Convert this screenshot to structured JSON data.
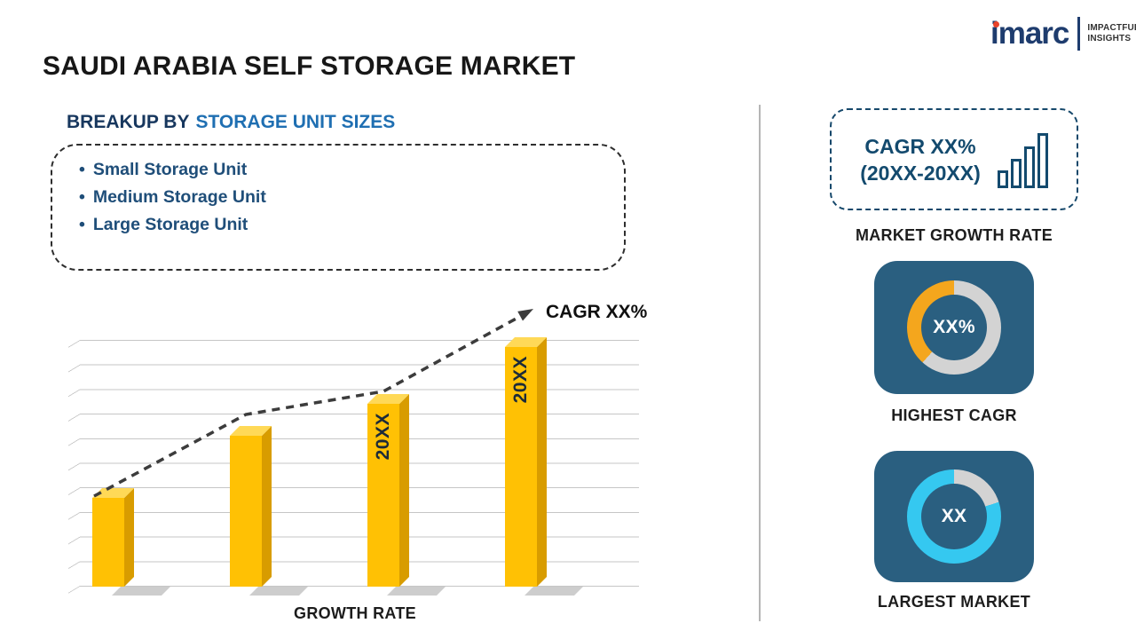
{
  "page": {
    "title": "SAUDI ARABIA SELF STORAGE MARKET"
  },
  "logo": {
    "brand": "imarc",
    "tagline_line1": "IMPACTFUL",
    "tagline_line2": "INSIGHTS"
  },
  "breakup": {
    "heading_prefix": "BREAKUP BY",
    "heading_highlight": "STORAGE UNIT SIZES",
    "items": [
      "Small Storage Unit",
      "Medium Storage Unit",
      "Large Storage Unit"
    ]
  },
  "chart_data": {
    "type": "bar",
    "bar_labels": [
      "",
      "",
      "20XX",
      "20XX"
    ],
    "values_pct": [
      36,
      61,
      74,
      97
    ],
    "ylim": [
      0,
      100
    ],
    "grid": true,
    "bar_color": "#FFC104",
    "xlabel": "GROWTH RATE",
    "trend_label": "CAGR XX%"
  },
  "sidebar": {
    "growth_box": {
      "line1": "CAGR XX%",
      "line2": "(20XX-20XX)",
      "icon": "bar-chart-icon"
    },
    "growth_caption": "MARKET GROWTH RATE",
    "cards": [
      {
        "value": "XX%",
        "caption": "HIGHEST CAGR",
        "accent": "#F4A61D",
        "arc_start_deg": 222,
        "arc_end_deg": 360
      },
      {
        "value": "XX",
        "caption": "LARGEST MARKET",
        "accent": "#35C8F0",
        "arc_start_deg": 72,
        "arc_end_deg": 360
      }
    ]
  },
  "colors": {
    "navy": "#17375E",
    "heading_blue": "#1F6FB2",
    "list_text": "#1F4E79",
    "card_bg": "#2A5F80",
    "ring_base": "#D3D3D3",
    "logo_red": "#E8432A"
  }
}
